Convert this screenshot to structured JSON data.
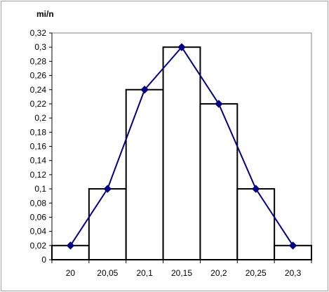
{
  "chart_data": {
    "type": "bar",
    "title": "",
    "xlabel": "",
    "ylabel": "mi/n",
    "ylim": [
      0,
      0.32
    ],
    "y_ticks": [
      {
        "value": 0,
        "label": "0"
      },
      {
        "value": 0.02,
        "label": "0,02"
      },
      {
        "value": 0.04,
        "label": "0,04"
      },
      {
        "value": 0.06,
        "label": "0,06"
      },
      {
        "value": 0.08,
        "label": "0,08"
      },
      {
        "value": 0.1,
        "label": "0,1"
      },
      {
        "value": 0.12,
        "label": "0,12"
      },
      {
        "value": 0.14,
        "label": "0,14"
      },
      {
        "value": 0.16,
        "label": "0,16"
      },
      {
        "value": 0.18,
        "label": "0,18"
      },
      {
        "value": 0.2,
        "label": "0,2"
      },
      {
        "value": 0.22,
        "label": "0,22"
      },
      {
        "value": 0.24,
        "label": "0,24"
      },
      {
        "value": 0.26,
        "label": "0,26"
      },
      {
        "value": 0.28,
        "label": "0,28"
      },
      {
        "value": 0.3,
        "label": "0,3"
      },
      {
        "value": 0.32,
        "label": "0,32"
      }
    ],
    "categories": [
      "20",
      "20,05",
      "20,1",
      "20,15",
      "20,2",
      "20,25",
      "20,3"
    ],
    "values": [
      0.02,
      0.1,
      0.24,
      0.3,
      0.22,
      0.1,
      0.02
    ],
    "grid": false,
    "legend": "none",
    "style": {
      "plot_area_color": "#ffffff",
      "bar_fill": "#ffffff",
      "bar_stroke": "#000000",
      "line_color": "#000080",
      "marker_color": "#000080",
      "marker_shape": "diamond",
      "frame_color": "#808080",
      "axis_color": "#000000"
    }
  }
}
